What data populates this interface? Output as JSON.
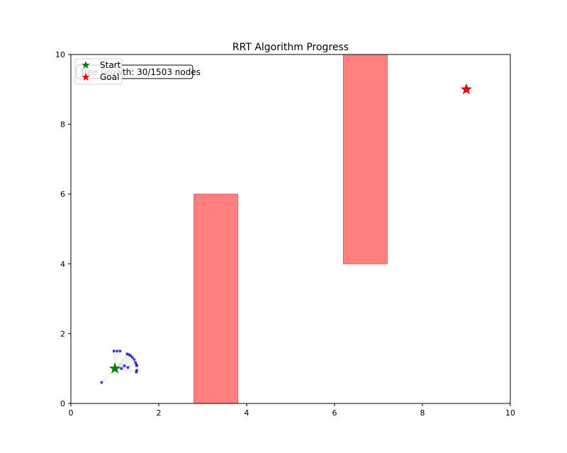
{
  "chart_data": {
    "type": "scatter",
    "title": "RRT Algorithm Progress",
    "xlabel": "",
    "ylabel": "",
    "xlim": [
      0,
      10
    ],
    "ylim": [
      0,
      10
    ],
    "x_ticks": [
      0,
      2,
      4,
      6,
      8,
      10
    ],
    "y_ticks": [
      0,
      2,
      4,
      6,
      8,
      10
    ],
    "grid": false,
    "legend_position": "top-left",
    "annotation": "Tree Growth: 30/1503 nodes",
    "start": {
      "name": "Start",
      "x": 1,
      "y": 1,
      "color": "#008000",
      "marker": "star"
    },
    "goal": {
      "name": "Goal",
      "x": 9,
      "y": 9,
      "color": "#ff0000",
      "marker": "star"
    },
    "obstacles": [
      {
        "x": 2.8,
        "y": 0,
        "width": 1.0,
        "height": 6,
        "color": "#ff7f7f"
      },
      {
        "x": 6.2,
        "y": 4,
        "width": 1.0,
        "height": 6,
        "color": "#ff7f7f"
      }
    ],
    "tree_nodes": {
      "color": "#0000cc",
      "points": [
        [
          0.7,
          0.6
        ],
        [
          0.98,
          1.5
        ],
        [
          1.05,
          1.5
        ],
        [
          1.12,
          1.5
        ],
        [
          1.28,
          1.42
        ],
        [
          1.32,
          1.4
        ],
        [
          1.36,
          1.37
        ],
        [
          1.4,
          1.32
        ],
        [
          1.44,
          1.26
        ],
        [
          1.47,
          1.18
        ],
        [
          1.49,
          1.12
        ],
        [
          1.5,
          1.08
        ],
        [
          1.5,
          0.95
        ],
        [
          1.49,
          0.9
        ],
        [
          1.3,
          1.03
        ],
        [
          1.22,
          1.08
        ],
        [
          1.15,
          1.0
        ]
      ]
    }
  }
}
